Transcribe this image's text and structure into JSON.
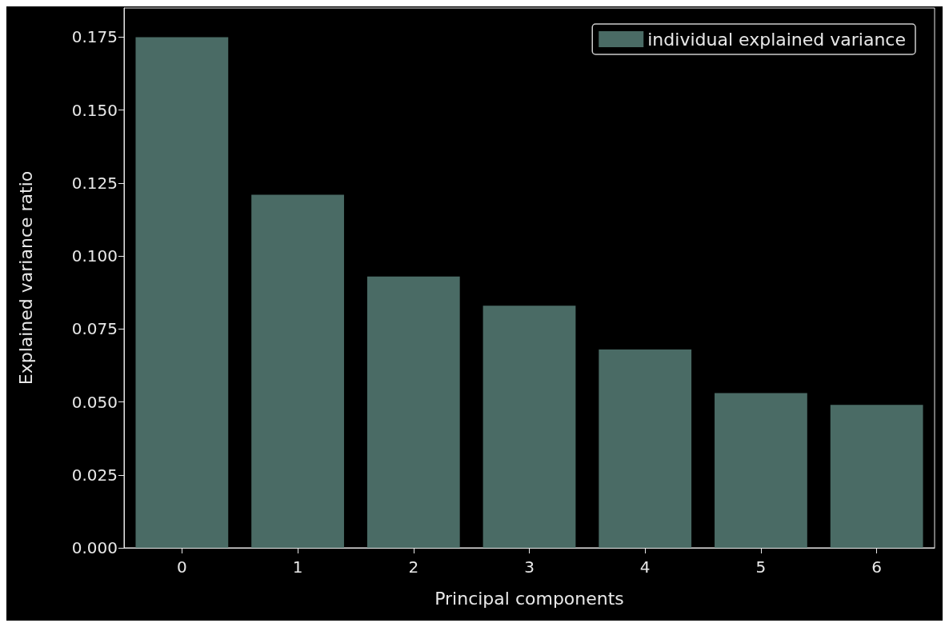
{
  "chart_data": {
    "type": "bar",
    "xlabel": "Principal components",
    "ylabel": "Explained variance ratio",
    "categories": [
      "0",
      "1",
      "2",
      "3",
      "4",
      "5",
      "6"
    ],
    "series": [
      {
        "name": "individual explained variance",
        "color": "#4a6b65",
        "values": [
          0.175,
          0.121,
          0.093,
          0.083,
          0.068,
          0.053,
          0.049
        ]
      }
    ],
    "ylim": [
      0,
      0.185
    ],
    "yticks": [
      {
        "value": 0,
        "label": "0.000"
      },
      {
        "value": 0.025,
        "label": "0.025"
      },
      {
        "value": 0.05,
        "label": "0.050"
      },
      {
        "value": 0.075,
        "label": "0.075"
      },
      {
        "value": 0.1,
        "label": "0.100"
      },
      {
        "value": 0.125,
        "label": "0.125"
      },
      {
        "value": 0.15,
        "label": "0.150"
      },
      {
        "value": 0.175,
        "label": "0.175"
      }
    ],
    "grid": false,
    "legend": "top right"
  }
}
